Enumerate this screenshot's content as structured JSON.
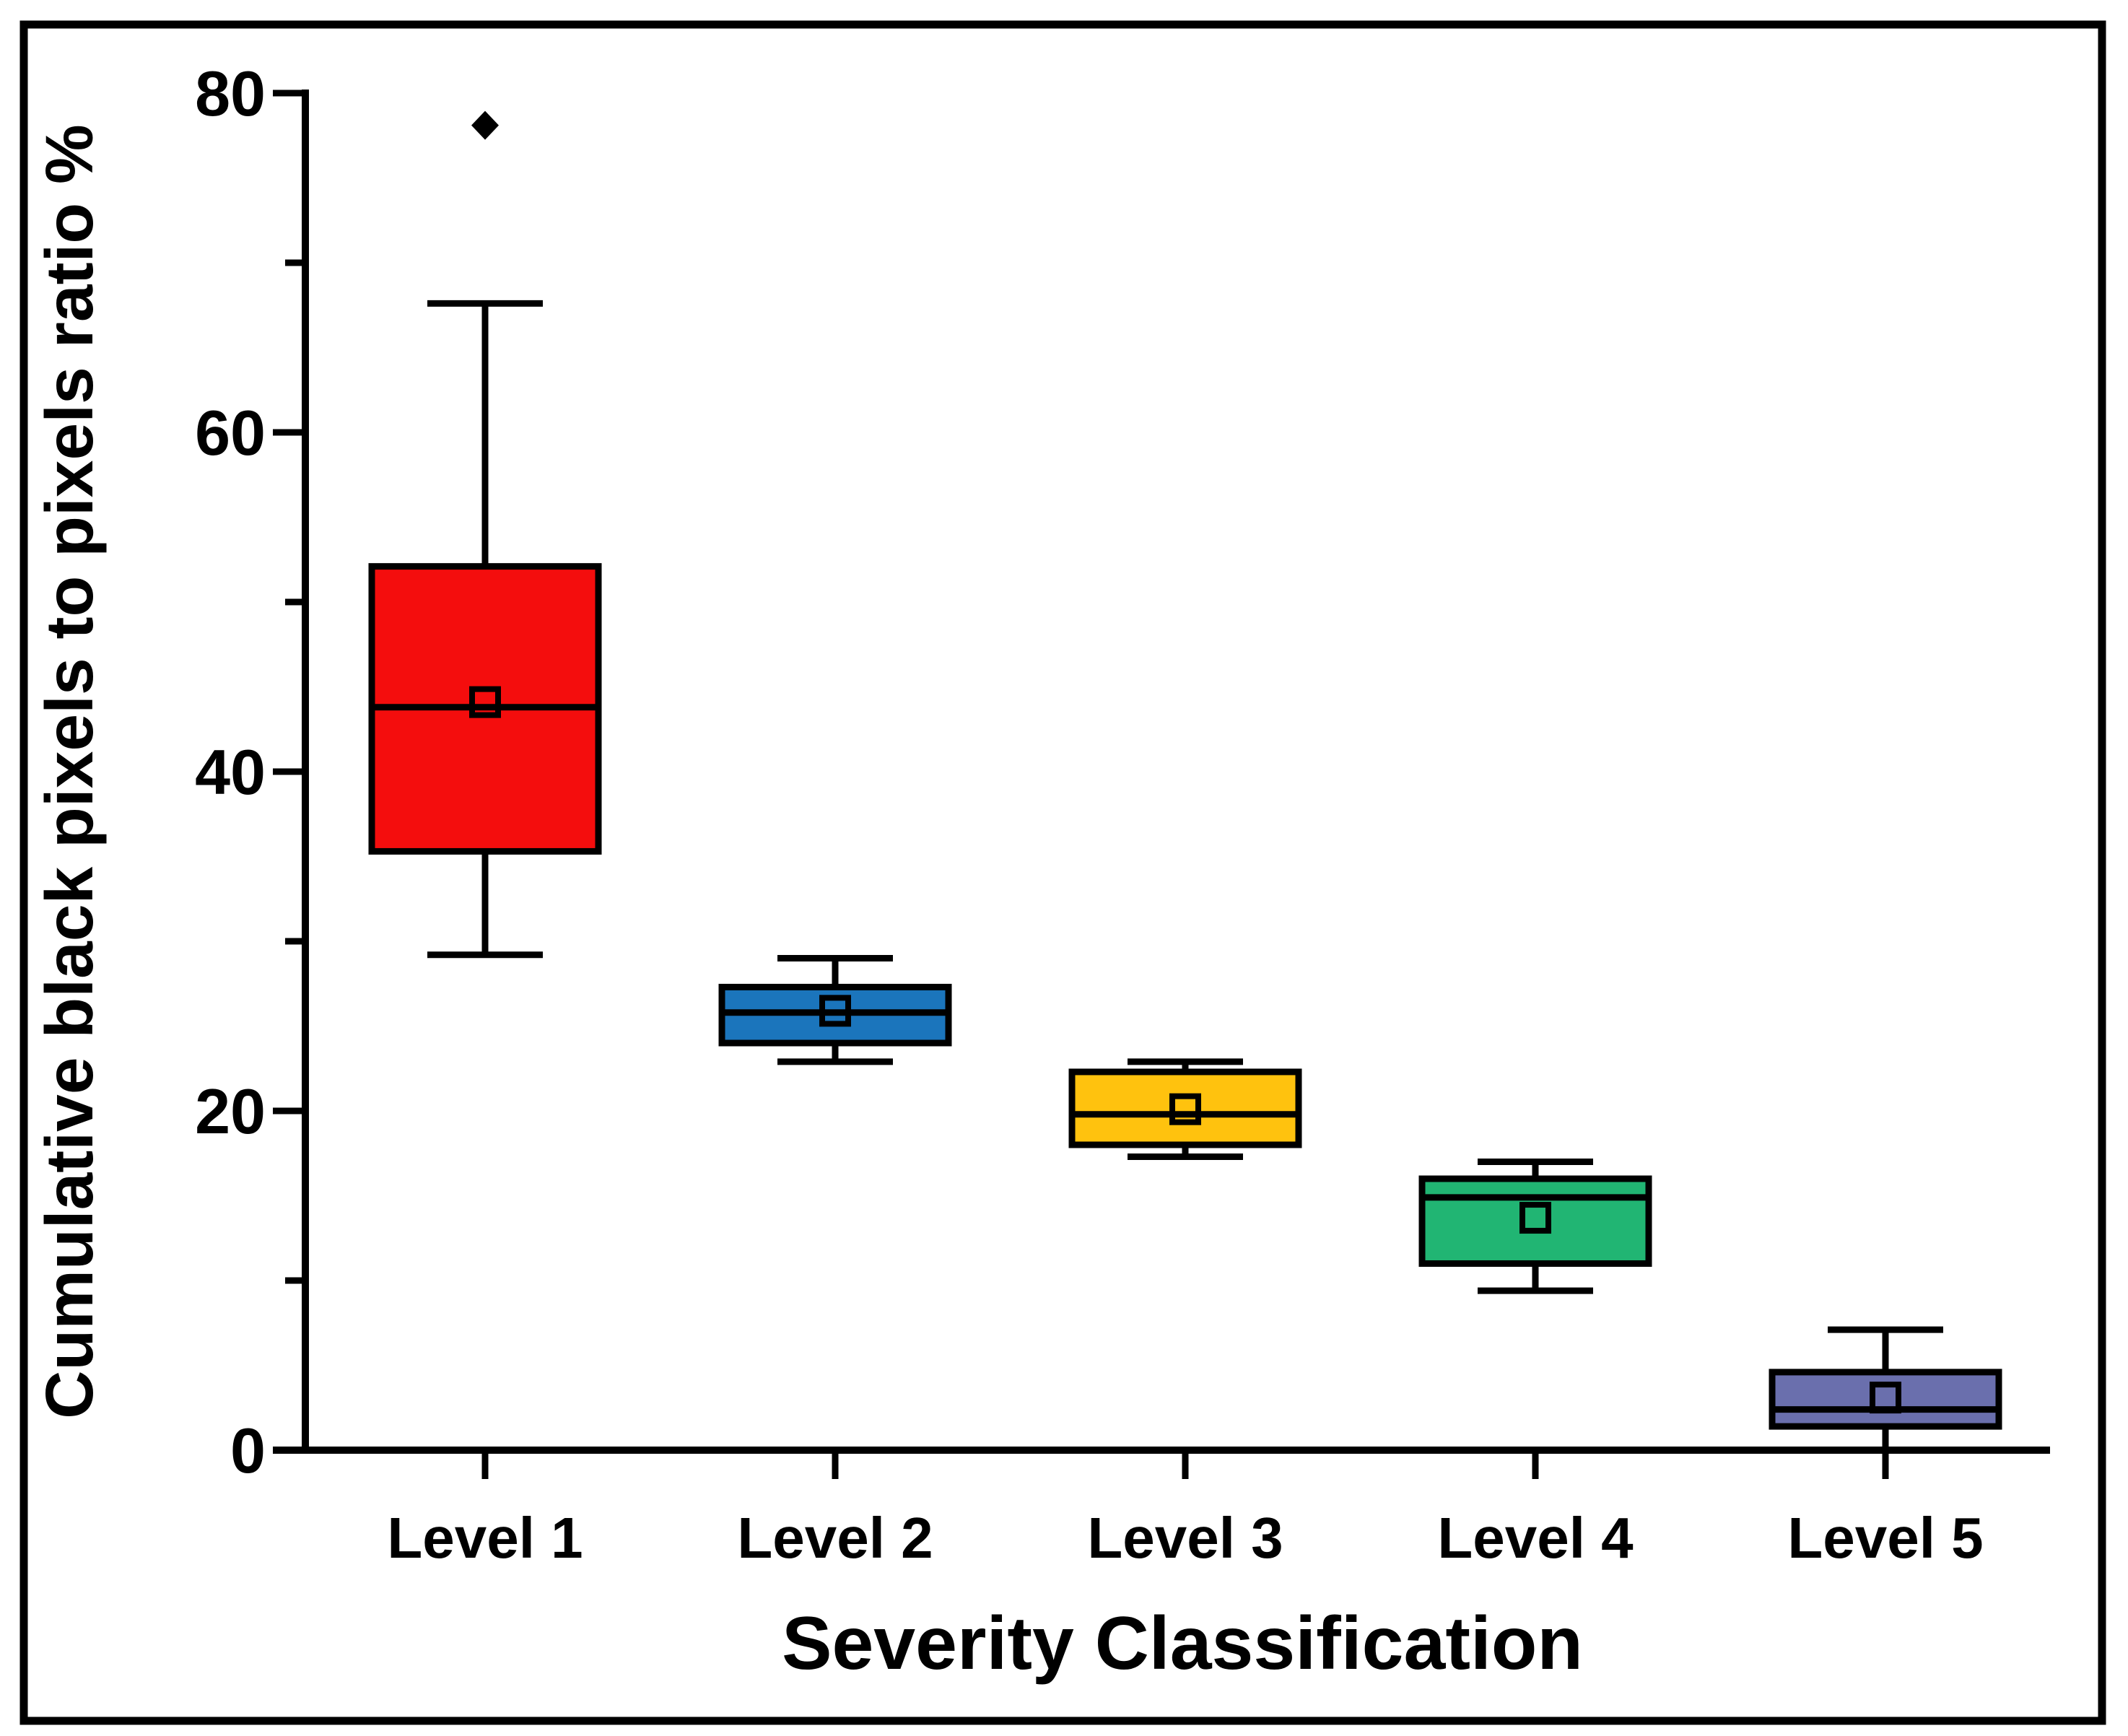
{
  "figure": {
    "background_color": "#ffffff",
    "frame_color": "#000000",
    "text_color": "#000000"
  },
  "chart_data": {
    "type": "box",
    "title": "",
    "xlabel": "Severity Classification",
    "ylabel": "Cumulative black pixels to pixels ratio %",
    "ylim": [
      0,
      80
    ],
    "y_major_ticks": [
      0,
      20,
      40,
      60,
      80
    ],
    "y_minor_ticks": [
      10,
      30,
      50,
      70
    ],
    "grid": false,
    "legend": "none",
    "categories": [
      "Level 1",
      "Level 2",
      "Level 3",
      "Level 4",
      "Level 5"
    ],
    "series": [
      {
        "category": "Level 1",
        "color": "#F40D0D",
        "whisker_low": 29.2,
        "q1": 35.3,
        "median": 43.8,
        "mean": 44.1,
        "q3": 52.1,
        "whisker_high": 67.6,
        "outliers": [
          78.1
        ]
      },
      {
        "category": "Level 2",
        "color": "#1B75BC",
        "whisker_low": 22.9,
        "q1": 24.0,
        "median": 25.8,
        "mean": 25.9,
        "q3": 27.3,
        "whisker_high": 29.0,
        "outliers": []
      },
      {
        "category": "Level 3",
        "color": "#FFC20E",
        "whisker_low": 17.3,
        "q1": 18.0,
        "median": 19.8,
        "mean": 20.1,
        "q3": 22.3,
        "whisker_high": 22.9,
        "outliers": []
      },
      {
        "category": "Level 4",
        "color": "#21B573",
        "whisker_low": 9.4,
        "q1": 11.0,
        "median": 14.9,
        "mean": 13.7,
        "q3": 16.0,
        "whisker_high": 17.0,
        "outliers": []
      },
      {
        "category": "Level 5",
        "color": "#6A6FAD",
        "whisker_low": 0,
        "q1": 1.4,
        "median": 2.4,
        "mean": 3.1,
        "q3": 4.6,
        "whisker_high": 7.1,
        "outliers": []
      }
    ]
  }
}
